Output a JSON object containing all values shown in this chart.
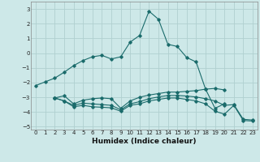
{
  "title": "",
  "xlabel": "Humidex (Indice chaleur)",
  "xlim": [
    -0.5,
    23.5
  ],
  "ylim": [
    -5.2,
    3.5
  ],
  "yticks": [
    -5,
    -4,
    -3,
    -2,
    -1,
    0,
    1,
    2,
    3
  ],
  "xticks": [
    0,
    1,
    2,
    3,
    4,
    5,
    6,
    7,
    8,
    9,
    10,
    11,
    12,
    13,
    14,
    15,
    16,
    17,
    18,
    19,
    20,
    21,
    22,
    23
  ],
  "bg_color": "#cde8e8",
  "grid_color": "#b0d0d0",
  "line_color": "#1a6b6b",
  "series": [
    {
      "x": [
        0,
        1,
        2,
        3,
        4,
        5,
        6,
        7,
        8,
        9,
        10,
        11,
        12,
        13,
        14,
        15,
        16,
        17,
        18,
        19,
        20
      ],
      "y": [
        -2.2,
        -1.95,
        -1.7,
        -1.3,
        -0.85,
        -0.5,
        -0.25,
        -0.15,
        -0.4,
        -0.25,
        0.75,
        1.2,
        2.85,
        2.3,
        0.6,
        0.45,
        -0.3,
        -0.6,
        -2.45,
        -2.4,
        -2.5
      ]
    },
    {
      "x": [
        2,
        3,
        4,
        5,
        6,
        7,
        8,
        9,
        10,
        11,
        12,
        13,
        14,
        15,
        16,
        17,
        18,
        19,
        20
      ],
      "y": [
        -3.05,
        -2.9,
        -3.45,
        -3.2,
        -3.1,
        -3.05,
        -3.1,
        -3.75,
        -3.25,
        -3.0,
        -2.85,
        -2.75,
        -2.65,
        -2.65,
        -2.6,
        -2.55,
        -2.45,
        -3.75,
        -3.45
      ]
    },
    {
      "x": [
        2,
        3,
        4,
        5,
        6,
        7,
        8,
        9,
        10,
        11,
        12,
        13,
        14,
        15,
        16,
        17,
        18,
        19,
        20,
        21,
        22,
        23
      ],
      "y": [
        -3.05,
        -3.25,
        -3.55,
        -3.4,
        -3.45,
        -3.5,
        -3.55,
        -3.85,
        -3.45,
        -3.3,
        -3.1,
        -2.98,
        -2.88,
        -2.88,
        -2.92,
        -2.98,
        -3.1,
        -3.25,
        -3.55,
        -3.5,
        -4.5,
        -4.55
      ]
    },
    {
      "x": [
        2,
        3,
        4,
        5,
        6,
        7,
        8,
        9,
        10,
        11,
        12,
        13,
        14,
        15,
        16,
        17,
        18,
        19,
        20,
        21,
        22,
        23
      ],
      "y": [
        -3.05,
        -3.25,
        -3.65,
        -3.55,
        -3.65,
        -3.68,
        -3.72,
        -3.95,
        -3.55,
        -3.45,
        -3.25,
        -3.15,
        -3.05,
        -3.05,
        -3.15,
        -3.25,
        -3.45,
        -3.95,
        -4.15,
        -3.55,
        -4.58,
        -4.62
      ]
    }
  ]
}
